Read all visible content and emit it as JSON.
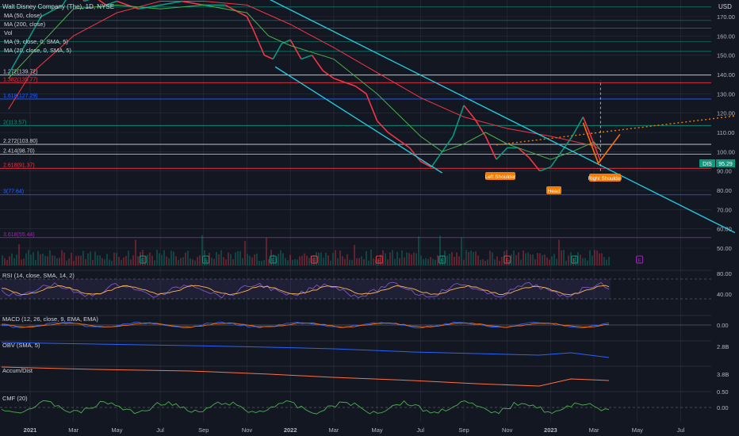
{
  "header": {
    "symbol_title": "Walt Disney Company (The), 1D, NYSE",
    "currency": "USD"
  },
  "indicator_labels": {
    "ma50": "MA (50, close)",
    "ma200": "MA (200, close)",
    "vol": "Vol",
    "ma9": "MA (9, close, 0, SMA, 5)",
    "ma20": "MA (20, close, 0, SMA, 5)"
  },
  "fib_levels": [
    {
      "label": "1.272(139.72)",
      "value": 139.72,
      "color": "#d1d4dc"
    },
    {
      "label": "1.382(135.77)",
      "value": 135.77,
      "color": "#f23645"
    },
    {
      "label": "1.618(127.29)",
      "value": 127.29,
      "color": "#2962ff"
    },
    {
      "label": "2(113.57)",
      "value": 113.57,
      "color": "#089981"
    },
    {
      "label": "2.272(103.80)",
      "value": 103.8,
      "color": "#d1d4dc"
    },
    {
      "label": "2.414(98.70)",
      "value": 98.7,
      "color": "#d1d4dc"
    },
    {
      "label": "2.618(91.37)",
      "value": 91.37,
      "color": "#f23645"
    },
    {
      "label": "3(77.64)",
      "value": 77.64,
      "color": "#2962ff"
    },
    {
      "label": "3.618(55.44)",
      "value": 55.44,
      "color": "#9c27b0"
    }
  ],
  "annotations": {
    "left_shoulder": "Left Shoulder",
    "head": "Head",
    "right_shoulder": "Right Shoulder"
  },
  "price_tag": {
    "symbol": "DIS",
    "value": "95.29"
  },
  "earnings_marker": "E",
  "sub_panes": {
    "rsi": {
      "label": "RSI (14, close, SMA, 14, 2)",
      "ticks": [
        "80.00",
        "40.00"
      ]
    },
    "macd": {
      "label": "MACD (12, 26, close, 9, EMA, EMA)",
      "ticks": [
        "0.00"
      ]
    },
    "obv": {
      "label": "OBV (SMA, 5)",
      "ticks": [
        "2.8B"
      ]
    },
    "accum": {
      "label": "Accum/Dist",
      "ticks": [
        "3.8B"
      ]
    },
    "cmf": {
      "label": "CMF (20)",
      "ticks": [
        "0.50",
        "0.00"
      ]
    }
  },
  "colors": {
    "background": "#131722",
    "up": "#089981",
    "down": "#f23645",
    "channel": "#26c6da",
    "ma200": "#f23645",
    "ma50": "#4caf50",
    "neckline": "#f57c00",
    "pattern": "#ff6d00",
    "rsi": "#7e57c2",
    "rsi_signal": "#ffb74d",
    "obv": "#2962ff",
    "accum": "#ff7043",
    "cmf": "#4caf50",
    "grid": "#2a2e39"
  },
  "chart_data": {
    "type": "line",
    "title": "Walt Disney Company (The), 1D, NYSE",
    "ylabel": "USD",
    "ylim": [
      45,
      175
    ],
    "y_ticks": [
      170,
      160,
      150,
      140,
      130,
      120,
      110,
      100,
      90,
      80,
      70,
      60,
      50
    ],
    "x_ticks": [
      {
        "label": "2021",
        "t": 0
      },
      {
        "label": "Mar",
        "t": 2
      },
      {
        "label": "May",
        "t": 4
      },
      {
        "label": "Jul",
        "t": 6
      },
      {
        "label": "Sep",
        "t": 8
      },
      {
        "label": "Nov",
        "t": 10
      },
      {
        "label": "2022",
        "t": 12
      },
      {
        "label": "Mar",
        "t": 14
      },
      {
        "label": "May",
        "t": 16
      },
      {
        "label": "Jul",
        "t": 18
      },
      {
        "label": "Sep",
        "t": 20
      },
      {
        "label": "Nov",
        "t": 22
      },
      {
        "label": "2023",
        "t": 24
      },
      {
        "label": "Mar",
        "t": 26
      },
      {
        "label": "May",
        "t": 28
      },
      {
        "label": "Jul",
        "t": 30
      }
    ],
    "series": [
      {
        "name": "Walt Disney Company (The)",
        "x": [
          -1,
          0.5,
          1.5,
          2,
          2.5,
          3,
          3.5,
          4,
          5,
          6,
          7,
          8,
          9,
          10,
          10.3,
          10.8,
          11.2,
          11.6,
          12,
          12.5,
          13,
          13.5,
          14,
          14.5,
          15,
          15.5,
          16,
          16.5,
          17,
          17.5,
          18,
          18.5,
          19,
          19.5,
          20,
          20.5,
          21,
          21.5,
          22,
          22.5,
          23,
          23.5,
          24,
          24.5,
          25,
          25.5,
          26,
          26.3
        ],
        "y": [
          140,
          170,
          176,
          185,
          178,
          180,
          176,
          178,
          174,
          176,
          178,
          176,
          176,
          170,
          163,
          150,
          148,
          156,
          158,
          148,
          150,
          142,
          138,
          136,
          134,
          130,
          116,
          110,
          106,
          102,
          95,
          92,
          100,
          108,
          124,
          117,
          108,
          96,
          102,
          102,
          97,
          90,
          92,
          100,
          108,
          118,
          104,
          95
        ]
      },
      {
        "name": "MA (200, close)",
        "x": [
          -1,
          0,
          2,
          4,
          6,
          8,
          10,
          12,
          14,
          16,
          18,
          20,
          22,
          24,
          26,
          26.3
        ],
        "y": [
          122,
          140,
          160,
          172,
          178,
          178,
          176,
          166,
          154,
          141,
          128,
          118,
          112,
          108,
          103,
          101
        ]
      },
      {
        "name": "MA (50, close)",
        "x": [
          -1,
          0,
          2,
          4,
          6,
          8,
          10,
          11,
          12,
          14,
          16,
          18,
          19,
          20,
          21,
          22,
          23,
          24,
          25,
          26,
          26.3
        ],
        "y": [
          138,
          150,
          174,
          176,
          174,
          176,
          172,
          160,
          155,
          148,
          130,
          108,
          100,
          104,
          110,
          104,
          100,
          96,
          100,
          105,
          101
        ]
      }
    ],
    "neckline": {
      "x": [
        21.5,
        32.5
      ],
      "y": [
        103.5,
        118.5
      ]
    },
    "pattern_projection": {
      "x": [
        25.5,
        26.2,
        27.2
      ],
      "y": [
        115,
        94,
        109
      ]
    },
    "target_line": {
      "x": [
        26.3,
        26.3
      ],
      "y": [
        90,
        137
      ]
    }
  }
}
